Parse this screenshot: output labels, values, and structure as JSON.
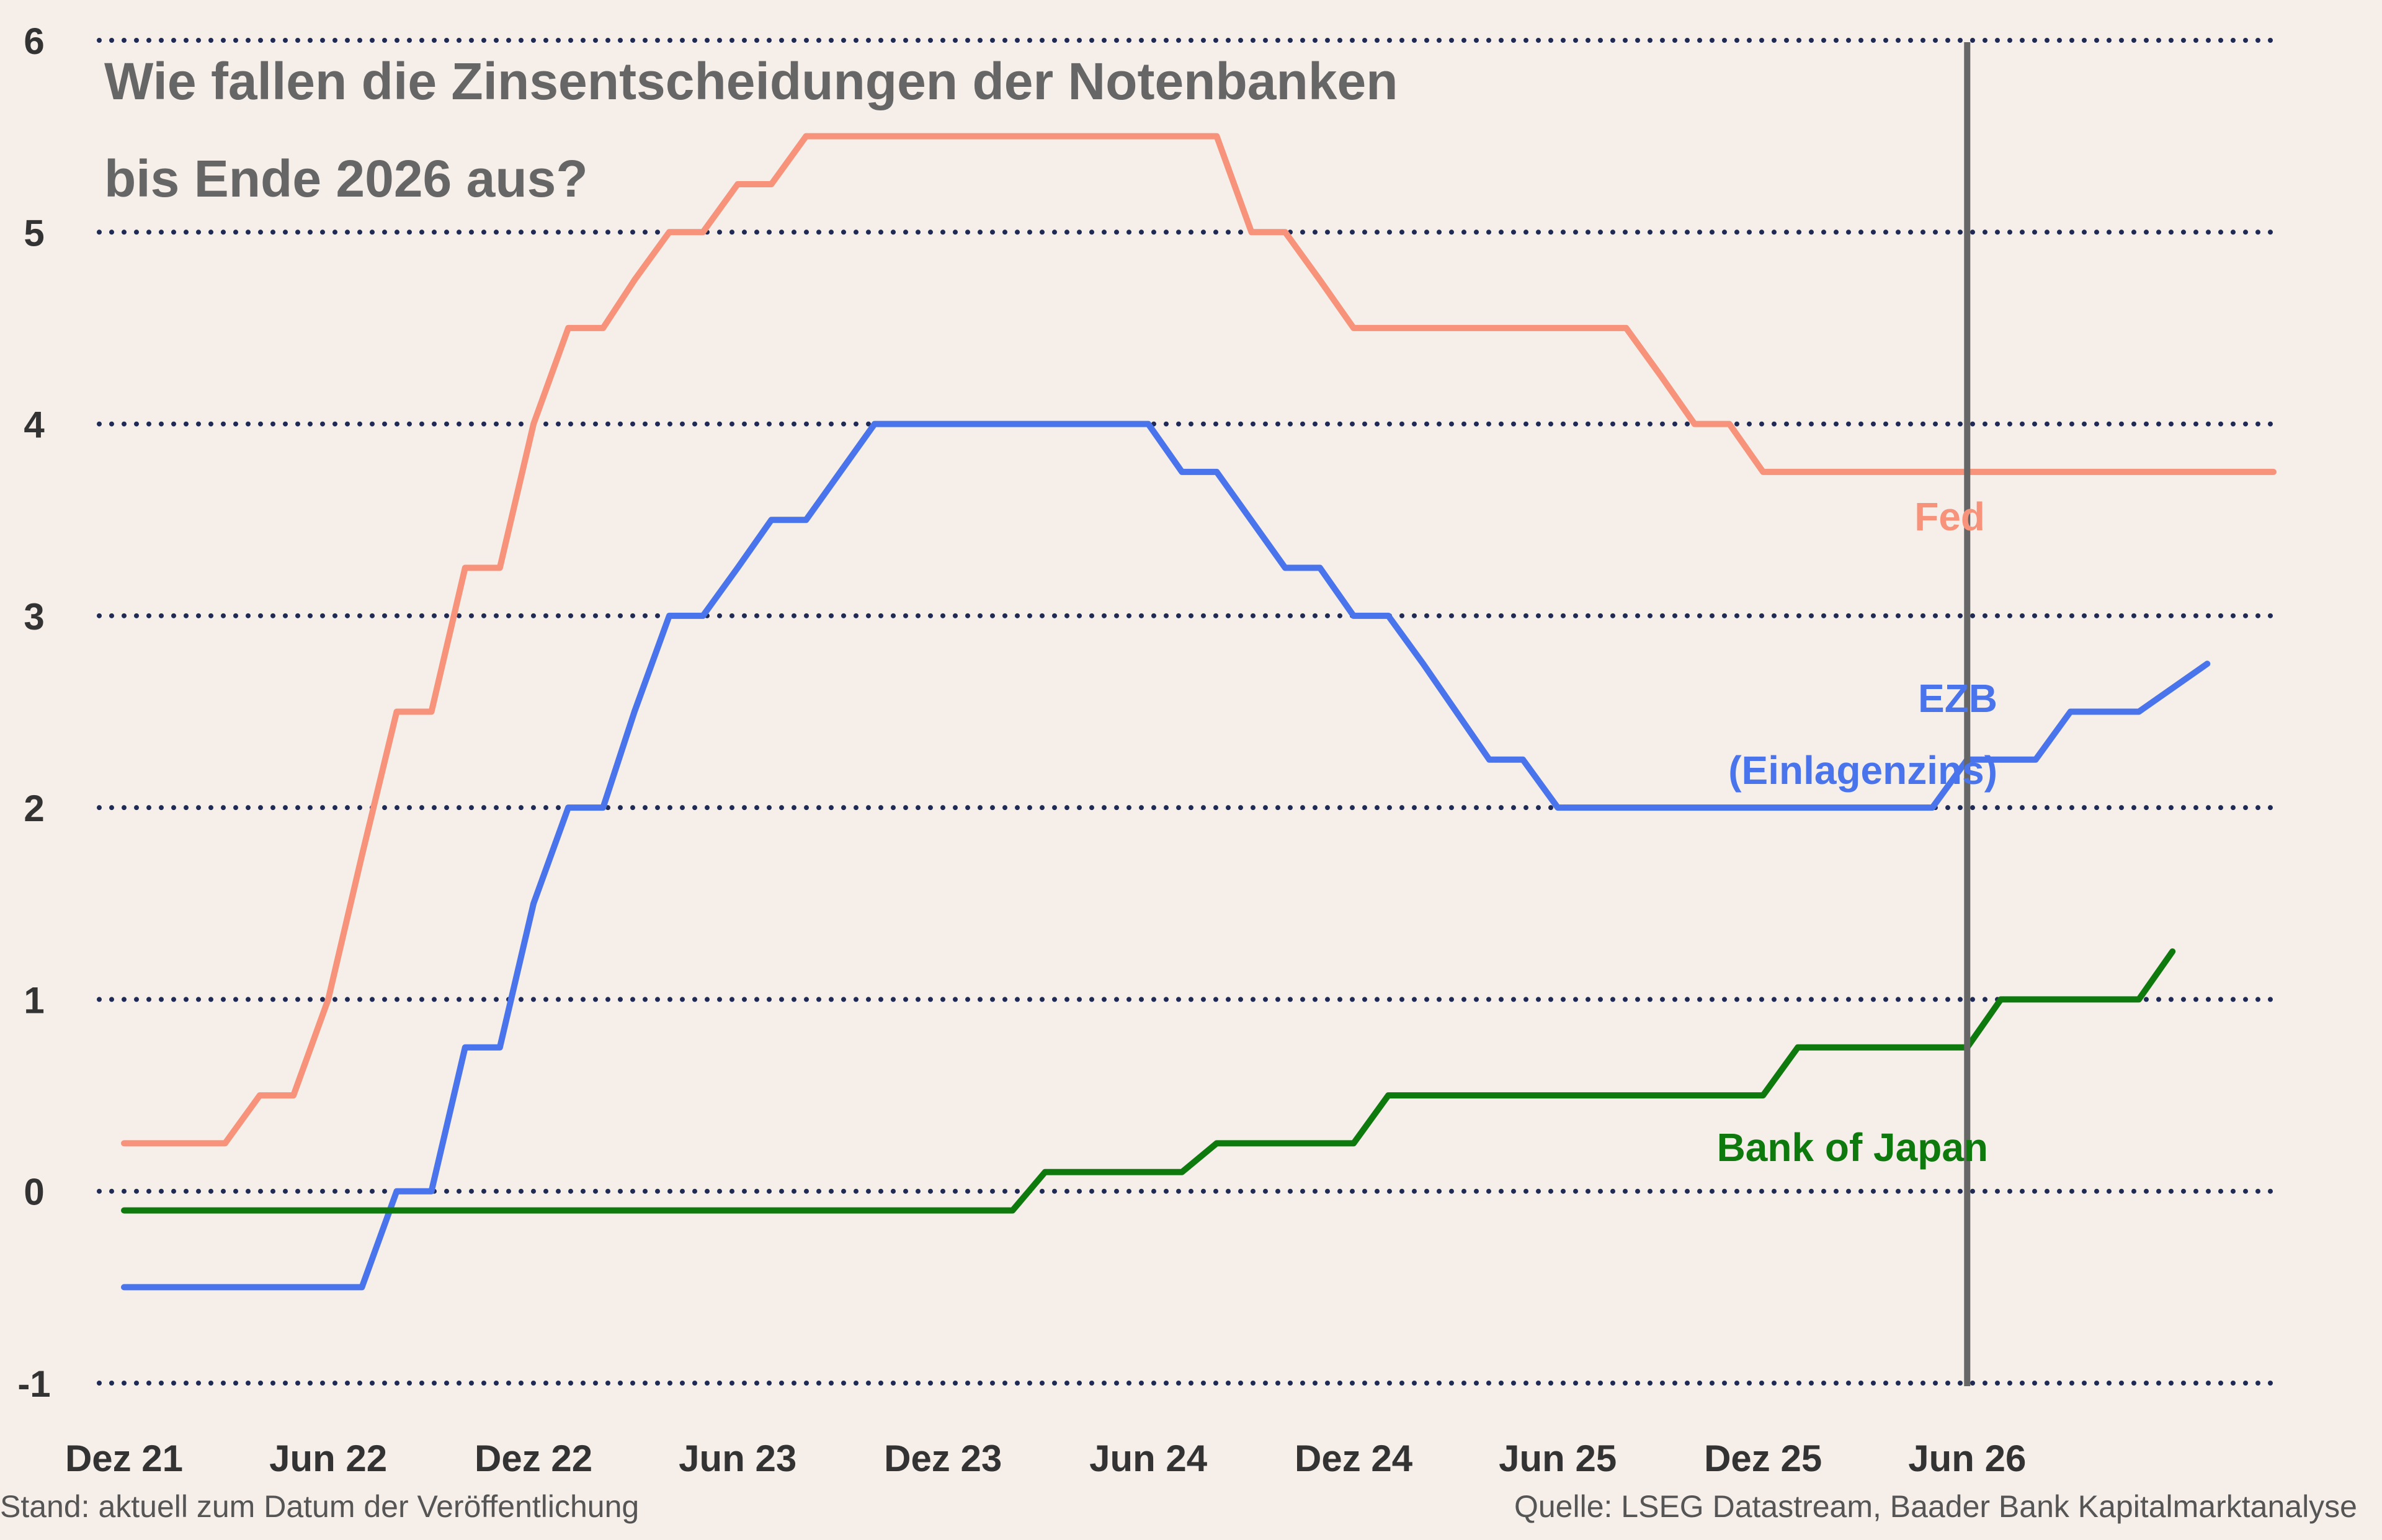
{
  "chart_data": {
    "type": "line",
    "title_lines": [
      "Wie fallen die Zinsentscheidungen der Notenbanken",
      "bis Ende 2026 aus?"
    ],
    "ylim": [
      -1,
      6
    ],
    "yticks": [
      "6",
      "5",
      "4",
      "3",
      "2",
      "1",
      "0",
      "-1"
    ],
    "ytick_values": [
      6,
      5,
      4,
      3,
      2,
      1,
      0,
      -1
    ],
    "xlim": [
      "2021-12-01",
      "2027-03-01"
    ],
    "xticks": [
      "Dez 21",
      "Jun 22",
      "Dez 22",
      "Jun 23",
      "Dez 23",
      "Jun 24",
      "Dez 24",
      "Jun 25",
      "Dez 25",
      "Jun 26"
    ],
    "xtick_dates": [
      "2021-12-01",
      "2022-06-01",
      "2022-12-01",
      "2023-06-01",
      "2023-12-01",
      "2024-06-01",
      "2024-12-01",
      "2025-06-01",
      "2025-12-01",
      "2026-06-01"
    ],
    "grid": "horizontal dotted",
    "vertical_marker_date": "2026-06-01",
    "source": "Quelle: LSEG Datastream, Baader Bank Kapitalmarktanalyse",
    "note": "Stand: aktuell zum Datum der Veröffentlichung",
    "series": [
      {
        "name": "Fed",
        "label_lines": [
          "Fed"
        ],
        "color": "#f7937a",
        "points": [
          [
            "2021-12-01",
            0.25
          ],
          [
            "2022-03-01",
            0.25
          ],
          [
            "2022-04-01",
            0.5
          ],
          [
            "2022-05-01",
            0.5
          ],
          [
            "2022-06-01",
            1.0
          ],
          [
            "2022-07-01",
            1.75
          ],
          [
            "2022-08-01",
            2.5
          ],
          [
            "2022-09-01",
            2.5
          ],
          [
            "2022-10-01",
            3.25
          ],
          [
            "2022-11-01",
            3.25
          ],
          [
            "2022-12-01",
            4.0
          ],
          [
            "2023-01-01",
            4.5
          ],
          [
            "2023-02-01",
            4.5
          ],
          [
            "2023-03-01",
            4.75
          ],
          [
            "2023-04-01",
            5.0
          ],
          [
            "2023-05-01",
            5.0
          ],
          [
            "2023-06-01",
            5.25
          ],
          [
            "2023-07-01",
            5.25
          ],
          [
            "2023-08-01",
            5.5
          ],
          [
            "2024-08-01",
            5.5
          ],
          [
            "2024-09-01",
            5.0
          ],
          [
            "2024-10-01",
            5.0
          ],
          [
            "2024-11-01",
            4.75
          ],
          [
            "2024-12-01",
            4.5
          ],
          [
            "2025-08-01",
            4.5
          ],
          [
            "2025-09-01",
            4.25
          ],
          [
            "2025-10-01",
            4.0
          ],
          [
            "2025-11-01",
            4.0
          ],
          [
            "2025-12-01",
            3.75
          ],
          [
            "2027-03-01",
            3.75
          ]
        ]
      },
      {
        "name": "EZB (Einlagenzins)",
        "label_lines": [
          "EZB",
          "(Einlagenzins)"
        ],
        "color": "#4a74ec",
        "points": [
          [
            "2021-12-01",
            -0.5
          ],
          [
            "2022-07-01",
            -0.5
          ],
          [
            "2022-08-01",
            0.0
          ],
          [
            "2022-09-01",
            0.0
          ],
          [
            "2022-10-01",
            0.75
          ],
          [
            "2022-11-01",
            0.75
          ],
          [
            "2022-12-01",
            1.5
          ],
          [
            "2023-01-01",
            2.0
          ],
          [
            "2023-02-01",
            2.0
          ],
          [
            "2023-03-01",
            2.5
          ],
          [
            "2023-04-01",
            3.0
          ],
          [
            "2023-05-01",
            3.0
          ],
          [
            "2023-06-01",
            3.25
          ],
          [
            "2023-07-01",
            3.5
          ],
          [
            "2023-08-01",
            3.5
          ],
          [
            "2023-10-01",
            4.0
          ],
          [
            "2024-06-01",
            4.0
          ],
          [
            "2024-07-01",
            3.75
          ],
          [
            "2024-08-01",
            3.75
          ],
          [
            "2024-10-01",
            3.25
          ],
          [
            "2024-11-01",
            3.25
          ],
          [
            "2024-12-01",
            3.0
          ],
          [
            "2025-01-01",
            3.0
          ],
          [
            "2025-02-01",
            2.75
          ],
          [
            "2025-04-01",
            2.25
          ],
          [
            "2025-05-01",
            2.25
          ],
          [
            "2025-06-01",
            2.0
          ],
          [
            "2026-05-01",
            2.0
          ],
          [
            "2026-06-01",
            2.25
          ],
          [
            "2026-08-01",
            2.25
          ],
          [
            "2026-09-01",
            2.5
          ],
          [
            "2026-11-01",
            2.5
          ],
          [
            "2027-01-01",
            2.75
          ]
        ]
      },
      {
        "name": "Bank of Japan",
        "label_lines": [
          "Bank of Japan"
        ],
        "color": "#0e7a0e",
        "points": [
          [
            "2021-12-01",
            -0.1
          ],
          [
            "2024-02-01",
            -0.1
          ],
          [
            "2024-03-01",
            0.1
          ],
          [
            "2024-07-01",
            0.1
          ],
          [
            "2024-08-01",
            0.25
          ],
          [
            "2024-12-01",
            0.25
          ],
          [
            "2025-01-01",
            0.5
          ],
          [
            "2025-12-01",
            0.5
          ],
          [
            "2026-01-01",
            0.75
          ],
          [
            "2026-06-01",
            0.75
          ],
          [
            "2026-07-01",
            1.0
          ],
          [
            "2026-11-01",
            1.0
          ],
          [
            "2026-12-01",
            1.25
          ]
        ]
      }
    ]
  }
}
